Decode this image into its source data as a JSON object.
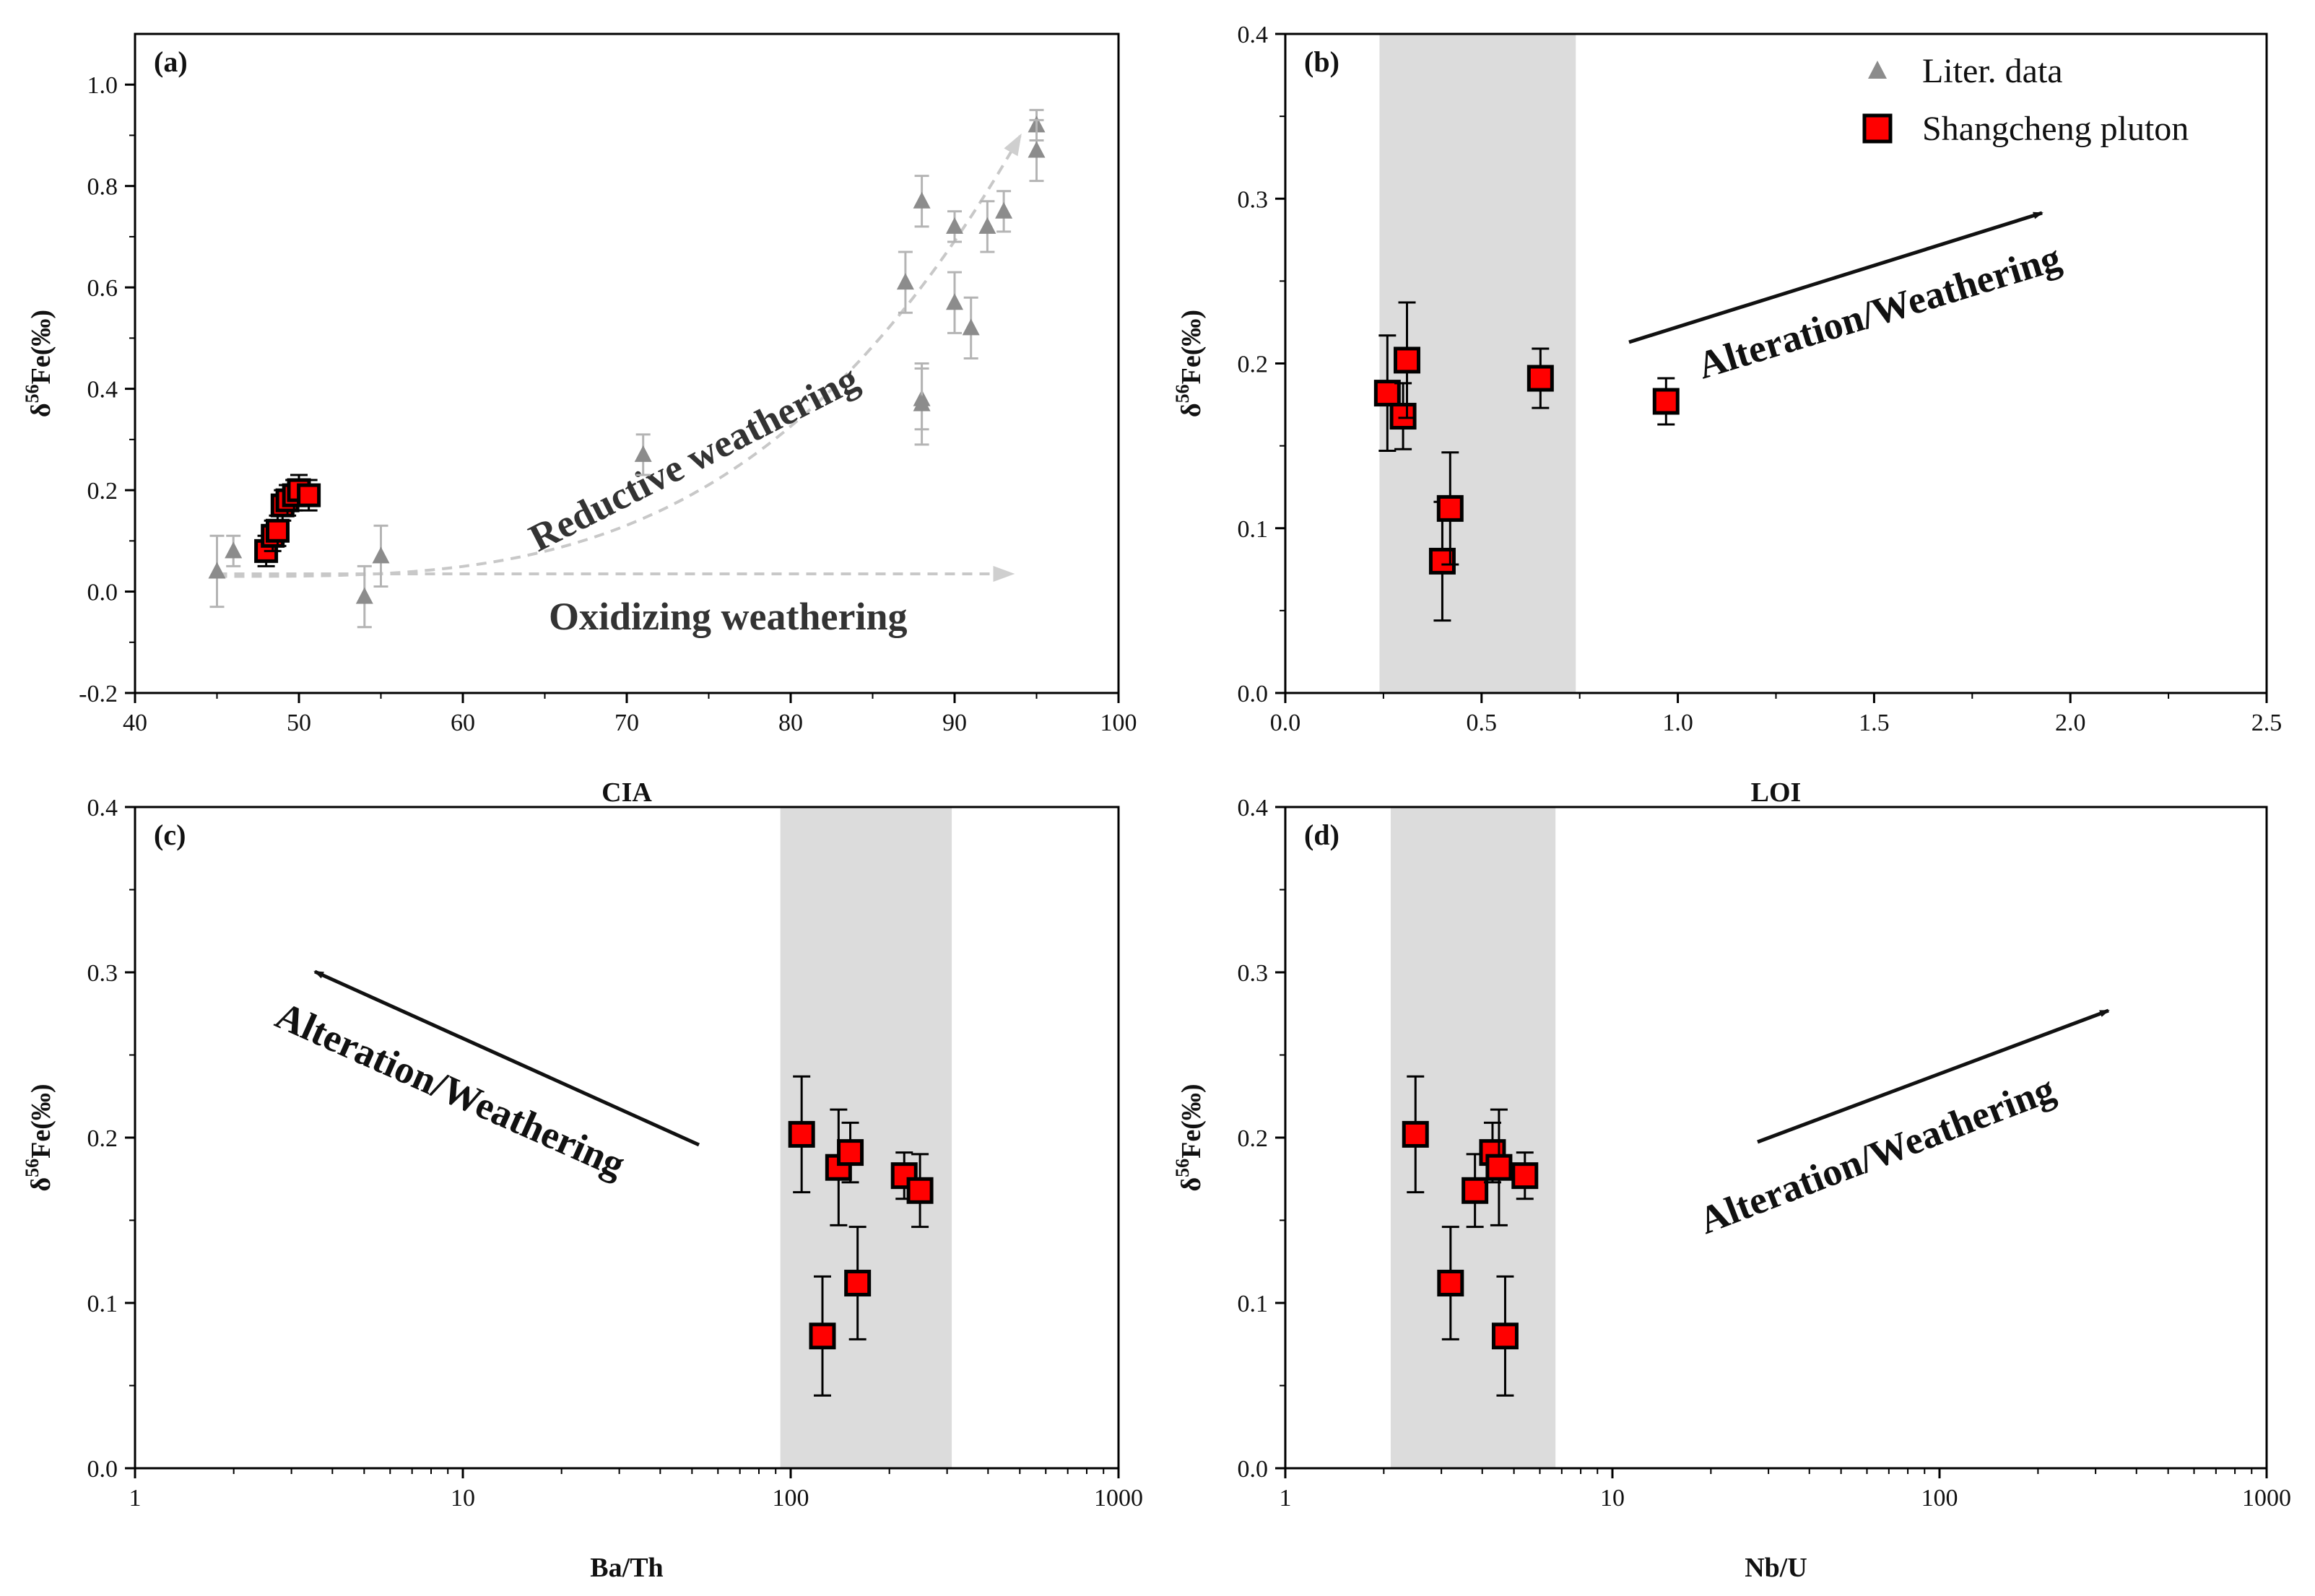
{
  "chart_data": [
    {
      "type": "scatter",
      "panel": "a",
      "panel_label": "(a)",
      "xlabel": "CIA",
      "ylabel": "δ56Fe(‰)",
      "xscale": "linear",
      "xlim": [
        40,
        100
      ],
      "ylim": [
        -0.2,
        1.1
      ],
      "xticks": [
        40,
        50,
        60,
        70,
        80,
        90,
        100
      ],
      "yticks": [
        -0.2,
        0.0,
        0.2,
        0.4,
        0.6,
        0.8,
        1.0
      ],
      "xtick_labels": [
        "40",
        "50",
        "60",
        "70",
        "80",
        "90",
        "100"
      ],
      "ytick_labels": [
        "-0.2",
        "0.0",
        "0.2",
        "0.4",
        "0.6",
        "0.8",
        "1.0"
      ],
      "shaded_x": null,
      "series": [
        {
          "name": "Liter. data",
          "marker": "triangle",
          "points": [
            {
              "x": 45,
              "y": 0.04,
              "err": 0.07
            },
            {
              "x": 46,
              "y": 0.08,
              "err": 0.03
            },
            {
              "x": 54,
              "y": -0.01,
              "err": 0.06
            },
            {
              "x": 55,
              "y": 0.07,
              "err": 0.06
            },
            {
              "x": 71,
              "y": 0.27,
              "err": 0.04
            },
            {
              "x": 87,
              "y": 0.61,
              "err": 0.06
            },
            {
              "x": 88,
              "y": 0.77,
              "err": 0.05
            },
            {
              "x": 88,
              "y": 0.38,
              "err": 0.06
            },
            {
              "x": 88,
              "y": 0.37,
              "err": 0.08
            },
            {
              "x": 90,
              "y": 0.72,
              "err": 0.03
            },
            {
              "x": 90,
              "y": 0.57,
              "err": 0.06
            },
            {
              "x": 91,
              "y": 0.52,
              "err": 0.06
            },
            {
              "x": 92,
              "y": 0.72,
              "err": 0.05
            },
            {
              "x": 93,
              "y": 0.75,
              "err": 0.04
            },
            {
              "x": 95,
              "y": 0.92,
              "err": 0.03
            },
            {
              "x": 95,
              "y": 0.87,
              "err": 0.06
            }
          ]
        },
        {
          "name": "Shangcheng pluton",
          "marker": "square",
          "points": [
            {
              "x": 48.0,
              "y": 0.08,
              "err": 0.03
            },
            {
              "x": 48.4,
              "y": 0.11,
              "err": 0.03
            },
            {
              "x": 48.7,
              "y": 0.12,
              "err": 0.03
            },
            {
              "x": 49.0,
              "y": 0.17,
              "err": 0.03
            },
            {
              "x": 49.3,
              "y": 0.18,
              "err": 0.03
            },
            {
              "x": 49.7,
              "y": 0.19,
              "err": 0.03
            },
            {
              "x": 50.0,
              "y": 0.2,
              "err": 0.03
            },
            {
              "x": 50.6,
              "y": 0.19,
              "err": 0.03
            }
          ]
        }
      ],
      "annotations": [
        {
          "text": "Reductive  weathering",
          "kind": "curve-label"
        },
        {
          "text": "Oxidizing  weathering",
          "kind": "line-label"
        }
      ]
    },
    {
      "type": "scatter",
      "panel": "b",
      "panel_label": "(b)",
      "xlabel": "LOI",
      "ylabel": "δ56Fe(‰)",
      "xscale": "linear",
      "xlim": [
        0.0,
        2.5
      ],
      "ylim": [
        0.0,
        0.4
      ],
      "xticks": [
        0.0,
        0.5,
        1.0,
        1.5,
        2.0,
        2.5
      ],
      "yticks": [
        0.0,
        0.1,
        0.2,
        0.3,
        0.4
      ],
      "xtick_labels": [
        "0.0",
        "0.5",
        "1.0",
        "1.5",
        "2.0",
        "2.5"
      ],
      "ytick_labels": [
        "0.0",
        "0.1",
        "0.2",
        "0.3",
        "0.4"
      ],
      "shaded_x": [
        0.24,
        0.74
      ],
      "series": [
        {
          "name": "Shangcheng pluton",
          "marker": "square",
          "points": [
            {
              "x": 0.26,
              "y": 0.182,
              "err": 0.035
            },
            {
              "x": 0.3,
              "y": 0.168,
              "err": 0.02
            },
            {
              "x": 0.31,
              "y": 0.202,
              "err": 0.035
            },
            {
              "x": 0.4,
              "y": 0.08,
              "err": 0.036
            },
            {
              "x": 0.42,
              "y": 0.112,
              "err": 0.034
            },
            {
              "x": 0.65,
              "y": 0.191,
              "err": 0.018
            },
            {
              "x": 0.97,
              "y": 0.177,
              "err": 0.014
            }
          ]
        }
      ],
      "annotations": [
        {
          "text": "Alteration/Weathering",
          "kind": "arrow-label"
        }
      ]
    },
    {
      "type": "scatter",
      "panel": "c",
      "panel_label": "(c)",
      "xlabel": "Ba/Th",
      "ylabel": "δ56Fe(‰)",
      "xscale": "log",
      "xlim": [
        1,
        1000
      ],
      "ylim": [
        0.0,
        0.4
      ],
      "xticks": [
        1,
        10,
        100,
        1000
      ],
      "yticks": [
        0.0,
        0.1,
        0.2,
        0.3,
        0.4
      ],
      "xtick_labels": [
        "1",
        "10",
        "100",
        "1000"
      ],
      "ytick_labels": [
        "0.0",
        "0.1",
        "0.2",
        "0.3",
        "0.4"
      ],
      "shaded_x": [
        93,
        310
      ],
      "series": [
        {
          "name": "Shangcheng pluton",
          "marker": "square",
          "points": [
            {
              "x": 108,
              "y": 0.202,
              "err": 0.035
            },
            {
              "x": 125,
              "y": 0.08,
              "err": 0.036
            },
            {
              "x": 140,
              "y": 0.182,
              "err": 0.035
            },
            {
              "x": 152,
              "y": 0.191,
              "err": 0.018
            },
            {
              "x": 160,
              "y": 0.112,
              "err": 0.034
            },
            {
              "x": 222,
              "y": 0.177,
              "err": 0.014
            },
            {
              "x": 248,
              "y": 0.168,
              "err": 0.022
            }
          ]
        }
      ],
      "annotations": [
        {
          "text": "Alteration/Weathering",
          "kind": "arrow-label"
        }
      ]
    },
    {
      "type": "scatter",
      "panel": "d",
      "panel_label": "(d)",
      "xlabel": "Nb/U",
      "ylabel": "δ56Fe(‰)",
      "xscale": "log",
      "xlim": [
        1,
        1000
      ],
      "ylim": [
        0.0,
        0.4
      ],
      "xticks": [
        1,
        10,
        100,
        1000
      ],
      "yticks": [
        0.0,
        0.1,
        0.2,
        0.3,
        0.4
      ],
      "xtick_labels": [
        "1",
        "10",
        "100",
        "1000"
      ],
      "ytick_labels": [
        "0.0",
        "0.1",
        "0.2",
        "0.3",
        "0.4"
      ],
      "shaded_x": [
        2.1,
        6.7
      ],
      "series": [
        {
          "name": "Shangcheng pluton",
          "marker": "square",
          "points": [
            {
              "x": 2.5,
              "y": 0.202,
              "err": 0.035
            },
            {
              "x": 3.2,
              "y": 0.112,
              "err": 0.034
            },
            {
              "x": 3.8,
              "y": 0.168,
              "err": 0.022
            },
            {
              "x": 4.3,
              "y": 0.191,
              "err": 0.018
            },
            {
              "x": 4.5,
              "y": 0.182,
              "err": 0.035
            },
            {
              "x": 4.7,
              "y": 0.08,
              "err": 0.036
            },
            {
              "x": 5.4,
              "y": 0.177,
              "err": 0.014
            }
          ]
        }
      ],
      "annotations": [
        {
          "text": "Alteration/Weathering",
          "kind": "arrow-label"
        }
      ]
    }
  ],
  "legend": {
    "items": [
      {
        "label": "Liter. data",
        "marker": "triangle",
        "color": "#8c8c8c"
      },
      {
        "label": "Shangcheng pluton",
        "marker": "square",
        "color": "#ff0000"
      }
    ]
  },
  "colors": {
    "square_fill": "#ff0000",
    "square_edge": "#000000",
    "triangle_fill": "#8c8c8c",
    "triangle_error": "#b4b4b4",
    "shade": "#dcdcdc",
    "dashed_curve": "#c8c8c8"
  }
}
